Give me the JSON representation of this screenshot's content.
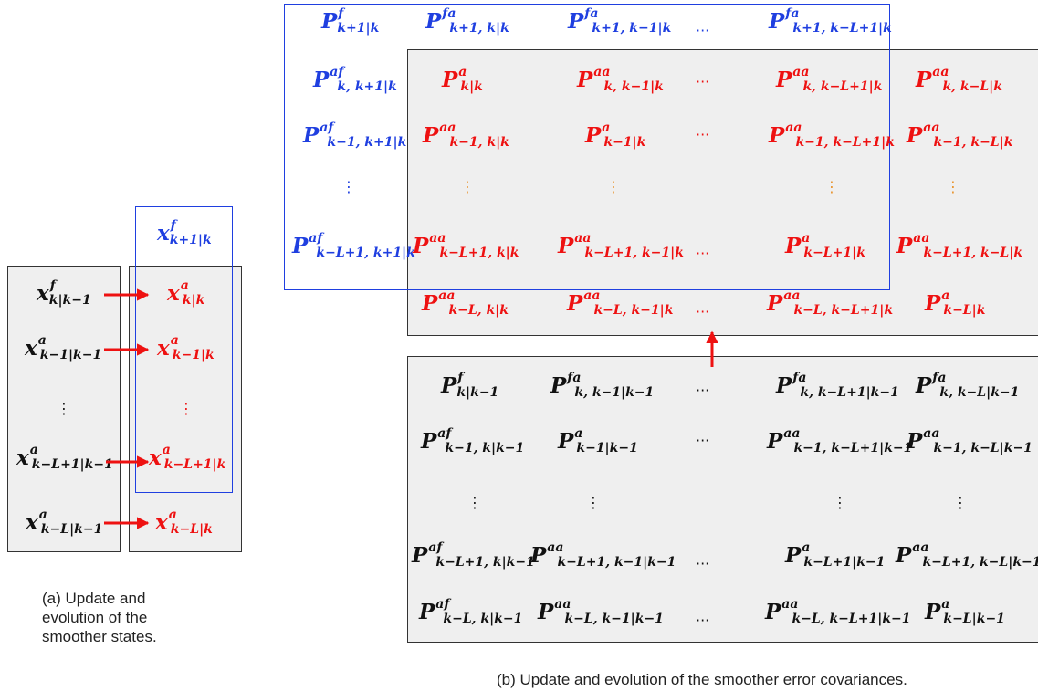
{
  "colors": {
    "forecast": "#1f3fe0",
    "analysis": "#ee1111",
    "prior": "#111111",
    "panel_fill": "#efefef",
    "arrow": "#ee1111"
  },
  "captions": {
    "a_line1": "(a) Update and",
    "a_line2": "evolution of the",
    "a_line3": "smoother states.",
    "b": "(b) Update and evolution of the smoother error covariances."
  },
  "dots": {
    "hdots": "···",
    "vdots": "⋮"
  },
  "states_left": [
    {
      "b": "x",
      "sup": "f",
      "sub": "k|k−1"
    },
    {
      "b": "x",
      "sup": "a",
      "sub": "k−1|k−1"
    },
    {
      "b": "x",
      "sup": "a",
      "sub": "k−L+1|k−1"
    },
    {
      "b": "x",
      "sup": "a",
      "sub": "k−L|k−1"
    }
  ],
  "states_right": [
    {
      "b": "x",
      "sup": "f",
      "sub": "k+1|k"
    },
    {
      "b": "x",
      "sup": "a",
      "sub": "k|k"
    },
    {
      "b": "x",
      "sup": "a",
      "sub": "k−1|k"
    },
    {
      "b": "x",
      "sup": "a",
      "sub": "k−L+1|k"
    },
    {
      "b": "x",
      "sup": "a",
      "sub": "k−L|k"
    }
  ],
  "cov_forecast_row": [
    {
      "b": "P",
      "sup": "f",
      "sub": "k+1|k"
    },
    {
      "b": "P",
      "sup": "fa",
      "sub": "k+1, k|k"
    },
    {
      "b": "P",
      "sup": "fa",
      "sub": "k+1, k−1|k"
    },
    {
      "b": "P",
      "sup": "fa",
      "sub": "k+1, k−L+1|k"
    }
  ],
  "cov_forecast_col": [
    {
      "b": "P",
      "sup": "af",
      "sub": "k, k+1|k"
    },
    {
      "b": "P",
      "sup": "af",
      "sub": "k−1, k+1|k"
    },
    {
      "b": "P",
      "sup": "af",
      "sub": "k−L+1, k+1|k"
    }
  ],
  "cov_updated": [
    [
      {
        "b": "P",
        "sup": "a",
        "sub": "k|k"
      },
      {
        "b": "P",
        "sup": "aa",
        "sub": "k, k−1|k"
      },
      {
        "b": "P",
        "sup": "aa",
        "sub": "k, k−L+1|k"
      },
      {
        "b": "P",
        "sup": "aa",
        "sub": "k, k−L|k"
      }
    ],
    [
      {
        "b": "P",
        "sup": "aa",
        "sub": "k−1, k|k"
      },
      {
        "b": "P",
        "sup": "a",
        "sub": "k−1|k"
      },
      {
        "b": "P",
        "sup": "aa",
        "sub": "k−1, k−L+1|k"
      },
      {
        "b": "P",
        "sup": "aa",
        "sub": "k−1, k−L|k"
      }
    ],
    [
      {
        "b": "P",
        "sup": "aa",
        "sub": "k−L+1, k|k"
      },
      {
        "b": "P",
        "sup": "aa",
        "sub": "k−L+1, k−1|k"
      },
      {
        "b": "P",
        "sup": "a",
        "sub": "k−L+1|k"
      },
      {
        "b": "P",
        "sup": "aa",
        "sub": "k−L+1, k−L|k"
      }
    ],
    [
      {
        "b": "P",
        "sup": "aa",
        "sub": "k−L, k|k"
      },
      {
        "b": "P",
        "sup": "aa",
        "sub": "k−L, k−1|k"
      },
      {
        "b": "P",
        "sup": "aa",
        "sub": "k−L, k−L+1|k"
      },
      {
        "b": "P",
        "sup": "a",
        "sub": "k−L|k"
      }
    ]
  ],
  "cov_prior": [
    [
      {
        "b": "P",
        "sup": "f",
        "sub": "k|k−1"
      },
      {
        "b": "P",
        "sup": "fa",
        "sub": "k, k−1|k−1"
      },
      {
        "b": "P",
        "sup": "fa",
        "sub": "k, k−L+1|k−1"
      },
      {
        "b": "P",
        "sup": "fa",
        "sub": "k, k−L|k−1"
      }
    ],
    [
      {
        "b": "P",
        "sup": "af",
        "sub": "k−1, k|k−1"
      },
      {
        "b": "P",
        "sup": "a",
        "sub": "k−1|k−1"
      },
      {
        "b": "P",
        "sup": "aa",
        "sub": "k−1, k−L+1|k−1"
      },
      {
        "b": "P",
        "sup": "aa",
        "sub": "k−1, k−L|k−1"
      }
    ],
    [
      {
        "b": "P",
        "sup": "af",
        "sub": "k−L+1, k|k−1"
      },
      {
        "b": "P",
        "sup": "aa",
        "sub": "k−L+1, k−1|k−1"
      },
      {
        "b": "P",
        "sup": "a",
        "sub": "k−L+1|k−1"
      },
      {
        "b": "P",
        "sup": "aa",
        "sub": "k−L+1, k−L|k−1"
      }
    ],
    [
      {
        "b": "P",
        "sup": "af",
        "sub": "k−L, k|k−1"
      },
      {
        "b": "P",
        "sup": "aa",
        "sub": "k−L, k−1|k−1"
      },
      {
        "b": "P",
        "sup": "aa",
        "sub": "k−L, k−L+1|k−1"
      },
      {
        "b": "P",
        "sup": "a",
        "sub": "k−L|k−1"
      }
    ]
  ]
}
